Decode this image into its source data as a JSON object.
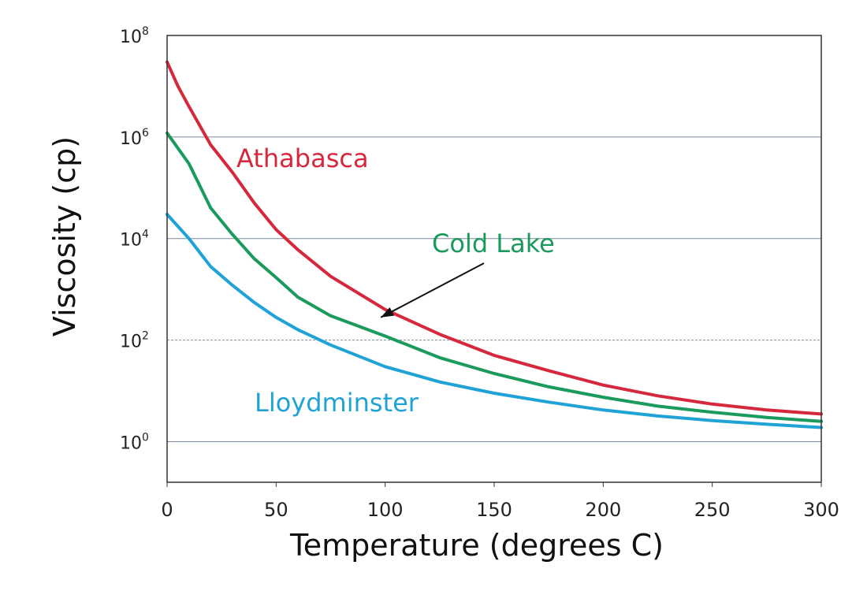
{
  "chart_data": {
    "type": "line",
    "xlabel": "Temperature (degrees  C)",
    "ylabel": "Viscosity (cp)",
    "xlim": [
      0,
      300
    ],
    "ylim_log10": [
      -0.8,
      8
    ],
    "y_scale": "log",
    "grid": "horizontal",
    "x_ticks": [
      0,
      50,
      100,
      150,
      200,
      250,
      300
    ],
    "x_tick_labels": [
      "0",
      "50",
      "100",
      "150",
      "200",
      "250",
      "300"
    ],
    "y_ticks": [
      {
        "value": 1,
        "base": "10",
        "exp": "0"
      },
      {
        "value": 100,
        "base": "10",
        "exp": "2"
      },
      {
        "value": 10000,
        "base": "10",
        "exp": "4"
      },
      {
        "value": 1000000,
        "base": "10",
        "exp": "6"
      },
      {
        "value": 100000000,
        "base": "10",
        "exp": "8"
      }
    ],
    "series": [
      {
        "name": "Athabasca",
        "color": "#d6283c",
        "x": [
          0,
          5,
          10,
          20,
          30,
          40,
          50,
          60,
          75,
          100,
          125,
          150,
          175,
          200,
          225,
          250,
          275,
          300
        ],
        "y": [
          30000000,
          10000000,
          4000000,
          700000,
          200000,
          50000,
          15000,
          6000,
          1800,
          400,
          130,
          50,
          25,
          13,
          8,
          5.5,
          4.2,
          3.5
        ]
      },
      {
        "name": "Cold Lake",
        "color": "#1a9a5c",
        "x": [
          0,
          10,
          20,
          30,
          40,
          50,
          60,
          75,
          100,
          125,
          150,
          175,
          200,
          225,
          250,
          275,
          300
        ],
        "y": [
          1200000,
          300000,
          40000,
          12000,
          4000,
          1700,
          700,
          300,
          120,
          45,
          22,
          12,
          7.5,
          5,
          3.8,
          3,
          2.5
        ]
      },
      {
        "name": "Lloydminster",
        "color": "#1fa2d6",
        "x": [
          0,
          10,
          20,
          30,
          40,
          50,
          60,
          75,
          100,
          125,
          150,
          175,
          200,
          225,
          250,
          275,
          300
        ],
        "y": [
          30000,
          10000,
          2800,
          1200,
          550,
          280,
          160,
          80,
          30,
          15,
          9,
          6,
          4.2,
          3.2,
          2.6,
          2.2,
          1.9
        ]
      }
    ],
    "annotation": {
      "label_series": "Cold Lake",
      "arrow_to": {
        "x": 98,
        "y": 280
      }
    }
  }
}
